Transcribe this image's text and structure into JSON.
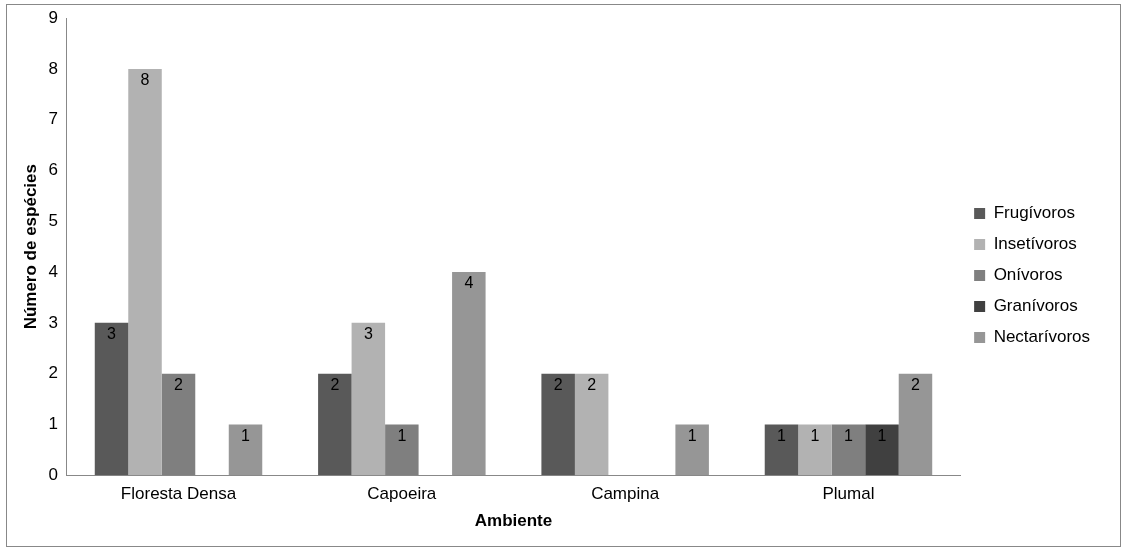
{
  "chart_data": {
    "type": "bar",
    "xlabel": "Ambiente",
    "ylabel": "Número de espécies",
    "categories": [
      "Floresta Densa",
      "Capoeira",
      "Campina",
      "Plumal"
    ],
    "series": [
      {
        "name": "Frugívoros",
        "color": "#595959",
        "values": [
          3,
          2,
          2,
          1
        ],
        "value_labels": [
          "3",
          "2",
          "2",
          "1"
        ]
      },
      {
        "name": "Insetívoros",
        "color": "#b2b2b2",
        "values": [
          8,
          3,
          2,
          1
        ],
        "value_labels": [
          "8",
          "3",
          "2",
          "1"
        ]
      },
      {
        "name": "Onívoros",
        "color": "#7f7f7f",
        "values": [
          2,
          1,
          0,
          1
        ],
        "value_labels": [
          "2",
          "1",
          null,
          "1"
        ]
      },
      {
        "name": "Granívoros",
        "color": "#404040",
        "values": [
          0,
          0,
          0,
          1
        ],
        "value_labels": [
          null,
          null,
          null,
          "1"
        ]
      },
      {
        "name": "Nectarívoros",
        "color": "#969696",
        "values": [
          1,
          4,
          1,
          2
        ],
        "value_labels": [
          "1",
          "4",
          "1",
          "2"
        ]
      }
    ],
    "ylim": [
      0,
      9
    ],
    "yticks": [
      0,
      1,
      2,
      3,
      4,
      5,
      6,
      7,
      8,
      9
    ],
    "grid": false,
    "legend": "right"
  }
}
